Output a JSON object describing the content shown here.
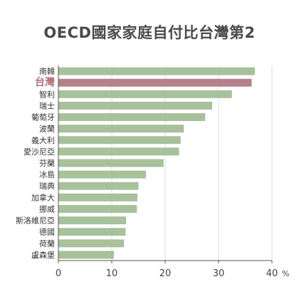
{
  "title": "OECD國家家庭自付比台灣第2",
  "chart_data": {
    "type": "bar",
    "orientation": "horizontal",
    "title": "OECD國家家庭自付比台灣第2",
    "categories": [
      "南韓",
      "台灣",
      "智利",
      "瑞士",
      "葡萄牙",
      "波蘭",
      "義大利",
      "愛沙尼亞",
      "芬蘭",
      "冰島",
      "瑞典",
      "加拿大",
      "挪威",
      "斯洛維尼亞",
      "德國",
      "荷蘭",
      "盧森堡"
    ],
    "values": [
      36.8,
      36.2,
      32.5,
      28.8,
      27.5,
      23.5,
      22.9,
      22.6,
      19.7,
      16.4,
      15.0,
      14.8,
      14.7,
      12.7,
      12.6,
      12.3,
      10.4
    ],
    "highlight": "台灣",
    "xlim": [
      0,
      40
    ],
    "xticks": [
      0,
      10,
      20,
      30,
      40
    ],
    "xunit": "%",
    "grid": true,
    "colors": {
      "bar": "#a7c19b",
      "highlight": "#b4828a",
      "highlight_text": "#b0707e",
      "grid": "#dddddd",
      "axis": "#555555"
    }
  }
}
